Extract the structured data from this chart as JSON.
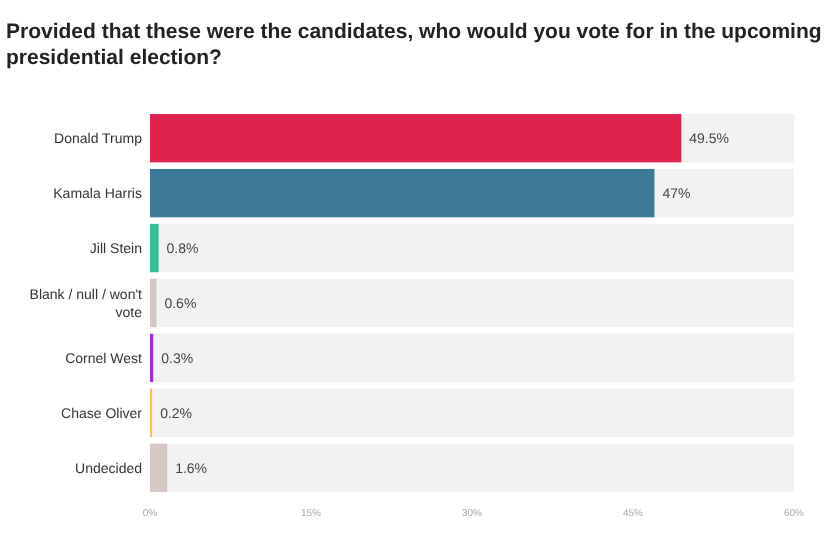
{
  "chart_data": {
    "type": "bar",
    "orientation": "horizontal",
    "title": "Provided that these were the candidates, who would you vote for in the upcoming presidential election?",
    "categories": [
      "Donald Trump",
      "Kamala Harris",
      "Jill Stein",
      "Blank / null / won't vote",
      "Cornel West",
      "Chase Oliver",
      "Undecided"
    ],
    "values": [
      49.5,
      47,
      0.8,
      0.6,
      0.3,
      0.2,
      1.6
    ],
    "colors": [
      "#e0224e",
      "#3c7a98",
      "#2fbf95",
      "#d3c8c4",
      "#9b30d9",
      "#f0c55a",
      "#d3c8c4"
    ],
    "value_labels": [
      "49.5%",
      "47%",
      "0.8%",
      "0.6%",
      "0.3%",
      "0.2%",
      "1.6%"
    ],
    "xlim": [
      0,
      60
    ],
    "xticks": [
      {
        "value": 0,
        "label": "0%"
      },
      {
        "value": 15,
        "label": "15%"
      },
      {
        "value": 30,
        "label": "30%"
      },
      {
        "value": 45,
        "label": "45%"
      },
      {
        "value": 60,
        "label": "60%"
      }
    ],
    "grid": false
  }
}
